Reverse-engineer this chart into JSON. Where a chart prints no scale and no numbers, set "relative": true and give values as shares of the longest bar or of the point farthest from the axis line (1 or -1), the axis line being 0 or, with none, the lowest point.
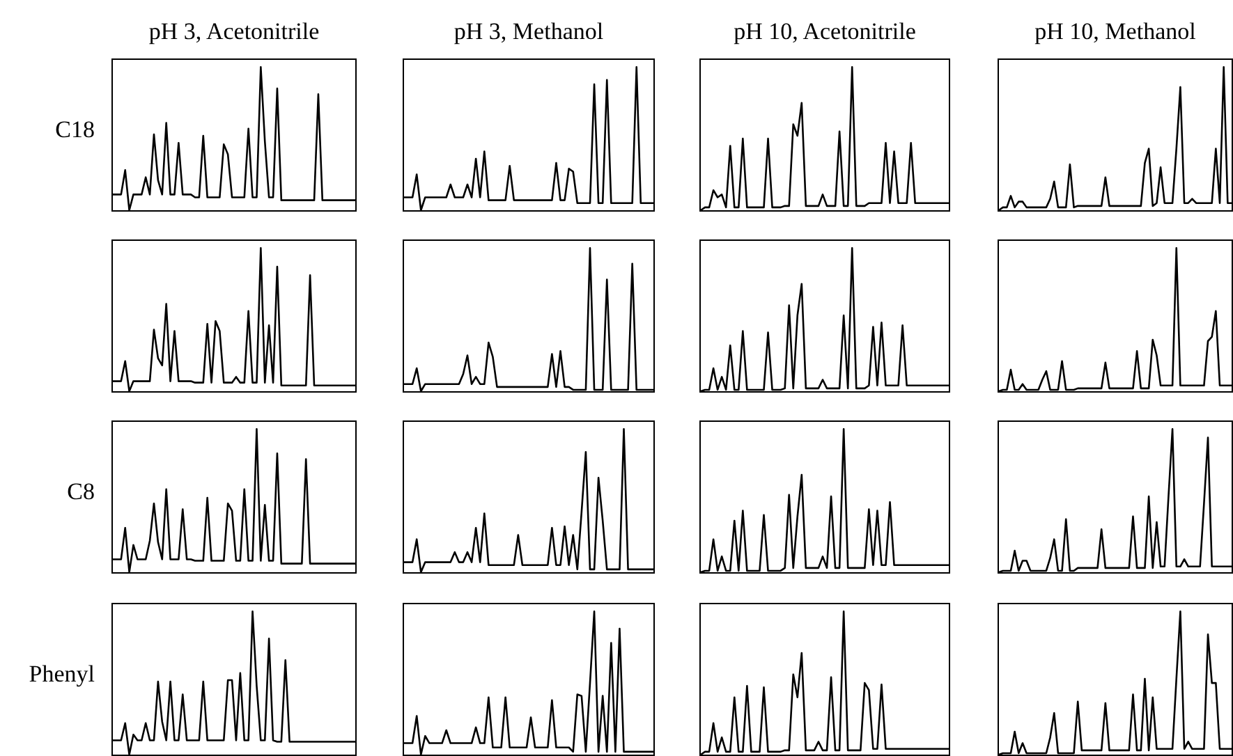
{
  "chart_data": [
    {
      "type": "line",
      "relative": true,
      "tick_labels": false,
      "color": "#000000",
      "title": "pH 3, Acetonitrile",
      "ylabel": "C18",
      "categories": [
        null,
        null,
        null,
        null,
        null,
        null,
        null,
        null,
        null,
        null,
        null,
        null,
        null,
        null,
        null,
        null,
        null,
        null,
        null,
        null,
        null,
        null,
        null,
        null,
        null,
        null,
        null,
        null,
        null,
        null,
        null,
        null,
        null,
        null,
        null,
        null,
        null,
        null,
        null,
        null,
        null,
        null,
        null,
        null,
        null,
        null,
        null,
        null,
        null,
        null,
        null,
        null,
        null,
        null,
        null,
        null,
        null,
        null,
        null,
        null
      ],
      "values": [
        0.11,
        0.11,
        0.11,
        0.28,
        0,
        0.11,
        0.11,
        0.11,
        0.23,
        0.11,
        0.53,
        0.21,
        0.11,
        0.61,
        0.11,
        0.11,
        0.47,
        0.11,
        0.11,
        0.11,
        0.09,
        0.09,
        0.52,
        0.09,
        0.09,
        0.09,
        0.09,
        0.46,
        0.39,
        0.09,
        0.09,
        0.09,
        0.09,
        0.57,
        0.09,
        0.09,
        1,
        0.48,
        0.09,
        0.09,
        0.85,
        0.07,
        0.07,
        0.07,
        0.07,
        0.07,
        0.07,
        0.07,
        0.07,
        0.07,
        0.81,
        0.07,
        0.07,
        0.07,
        0.07,
        0.07,
        0.07,
        0.07,
        0.07,
        0.07
      ]
    },
    {
      "type": "line",
      "relative": true,
      "tick_labels": false,
      "color": "#000000",
      "title": "pH 3, Methanol",
      "categories": [
        null,
        null,
        null,
        null,
        null,
        null,
        null,
        null,
        null,
        null,
        null,
        null,
        null,
        null,
        null,
        null,
        null,
        null,
        null,
        null,
        null,
        null,
        null,
        null,
        null,
        null,
        null,
        null,
        null,
        null,
        null,
        null,
        null,
        null,
        null,
        null,
        null,
        null,
        null,
        null,
        null,
        null,
        null,
        null,
        null,
        null,
        null,
        null,
        null,
        null,
        null,
        null,
        null,
        null,
        null,
        null,
        null,
        null,
        null,
        null
      ],
      "values": [
        0.09,
        0.09,
        0.09,
        0.25,
        0,
        0.09,
        0.09,
        0.09,
        0.09,
        0.09,
        0.09,
        0.18,
        0.09,
        0.09,
        0.09,
        0.18,
        0.09,
        0.36,
        0.09,
        0.41,
        0.07,
        0.07,
        0.07,
        0.07,
        0.07,
        0.31,
        0.07,
        0.07,
        0.07,
        0.07,
        0.07,
        0.07,
        0.07,
        0.07,
        0.07,
        0.07,
        0.33,
        0.07,
        0.07,
        0.29,
        0.27,
        0.05,
        0.05,
        0.05,
        0.05,
        0.88,
        0.05,
        0.05,
        0.91,
        0.05,
        0.05,
        0.05,
        0.05,
        0.05,
        0.05,
        1,
        0.05,
        0.05,
        0.05,
        0.05
      ]
    },
    {
      "type": "line",
      "relative": true,
      "tick_labels": false,
      "color": "#000000",
      "title": "pH 10, Acetonitrile",
      "categories": [
        null,
        null,
        null,
        null,
        null,
        null,
        null,
        null,
        null,
        null,
        null,
        null,
        null,
        null,
        null,
        null,
        null,
        null,
        null,
        null,
        null,
        null,
        null,
        null,
        null,
        null,
        null,
        null,
        null,
        null,
        null,
        null,
        null,
        null,
        null,
        null,
        null,
        null,
        null,
        null,
        null,
        null,
        null,
        null,
        null,
        null,
        null,
        null,
        null,
        null,
        null,
        null,
        null,
        null,
        null,
        null,
        null,
        null,
        null,
        null
      ],
      "values": [
        0,
        0.02,
        0.02,
        0.14,
        0.09,
        0.11,
        0.02,
        0.45,
        0.02,
        0.02,
        0.5,
        0.02,
        0.02,
        0.02,
        0.02,
        0.02,
        0.5,
        0.02,
        0.02,
        0.02,
        0.03,
        0.03,
        0.6,
        0.52,
        0.75,
        0.03,
        0.03,
        0.03,
        0.03,
        0.11,
        0.03,
        0.03,
        0.03,
        0.55,
        0.03,
        0.03,
        1,
        0.03,
        0.03,
        0.03,
        0.05,
        0.05,
        0.05,
        0.05,
        0.47,
        0.05,
        0.41,
        0.05,
        0.05,
        0.05,
        0.47,
        0.05,
        0.05,
        0.05,
        0.05,
        0.05,
        0.05,
        0.05,
        0.05,
        0.05
      ]
    },
    {
      "type": "line",
      "relative": true,
      "tick_labels": false,
      "color": "#000000",
      "title": "pH 10, Methanol",
      "categories": [
        null,
        null,
        null,
        null,
        null,
        null,
        null,
        null,
        null,
        null,
        null,
        null,
        null,
        null,
        null,
        null,
        null,
        null,
        null,
        null,
        null,
        null,
        null,
        null,
        null,
        null,
        null,
        null,
        null,
        null,
        null,
        null,
        null,
        null,
        null,
        null,
        null,
        null,
        null,
        null,
        null,
        null,
        null,
        null,
        null,
        null,
        null,
        null,
        null,
        null,
        null,
        null,
        null,
        null,
        null,
        null,
        null,
        null,
        null,
        null
      ],
      "values": [
        0,
        0.02,
        0.02,
        0.1,
        0.02,
        0.06,
        0.06,
        0.02,
        0.02,
        0.02,
        0.02,
        0.02,
        0.02,
        0.08,
        0.2,
        0.02,
        0.02,
        0.02,
        0.32,
        0.02,
        0.03,
        0.03,
        0.03,
        0.03,
        0.03,
        0.03,
        0.03,
        0.23,
        0.03,
        0.03,
        0.03,
        0.03,
        0.03,
        0.03,
        0.03,
        0.03,
        0.03,
        0.33,
        0.43,
        0.03,
        0.05,
        0.3,
        0.05,
        0.05,
        0.05,
        0.43,
        0.86,
        0.05,
        0.05,
        0.08,
        0.05,
        0.05,
        0.05,
        0.05,
        0.05,
        0.43,
        0.05,
        1,
        0.05,
        0.05
      ]
    },
    {
      "type": "line",
      "relative": true,
      "tick_labels": false,
      "color": "#000000",
      "categories": [
        null,
        null,
        null,
        null,
        null,
        null,
        null,
        null,
        null,
        null,
        null,
        null,
        null,
        null,
        null,
        null,
        null,
        null,
        null,
        null,
        null,
        null,
        null,
        null,
        null,
        null,
        null,
        null,
        null,
        null,
        null,
        null,
        null,
        null,
        null,
        null,
        null,
        null,
        null,
        null,
        null,
        null,
        null,
        null,
        null,
        null,
        null,
        null,
        null,
        null,
        null,
        null,
        null,
        null,
        null,
        null,
        null,
        null,
        null,
        null
      ],
      "values": [
        0.07,
        0.07,
        0.07,
        0.21,
        0,
        0.07,
        0.07,
        0.07,
        0.07,
        0.07,
        0.43,
        0.23,
        0.18,
        0.61,
        0.07,
        0.42,
        0.07,
        0.07,
        0.07,
        0.07,
        0.06,
        0.06,
        0.06,
        0.47,
        0.06,
        0.49,
        0.42,
        0.06,
        0.06,
        0.06,
        0.1,
        0.06,
        0.06,
        0.56,
        0.06,
        0.06,
        1,
        0.06,
        0.46,
        0.06,
        0.87,
        0.04,
        0.04,
        0.04,
        0.04,
        0.04,
        0.04,
        0.04,
        0.81,
        0.04,
        0.04,
        0.04,
        0.04,
        0.04,
        0.04,
        0.04,
        0.04,
        0.04,
        0.04,
        0.04
      ]
    },
    {
      "type": "line",
      "relative": true,
      "tick_labels": false,
      "color": "#000000",
      "categories": [
        null,
        null,
        null,
        null,
        null,
        null,
        null,
        null,
        null,
        null,
        null,
        null,
        null,
        null,
        null,
        null,
        null,
        null,
        null,
        null,
        null,
        null,
        null,
        null,
        null,
        null,
        null,
        null,
        null,
        null,
        null,
        null,
        null,
        null,
        null,
        null,
        null,
        null,
        null,
        null,
        null,
        null,
        null,
        null,
        null,
        null,
        null,
        null,
        null,
        null,
        null,
        null,
        null,
        null,
        null,
        null,
        null,
        null,
        null,
        null
      ],
      "values": [
        0.05,
        0.05,
        0.05,
        0.16,
        0,
        0.05,
        0.05,
        0.05,
        0.05,
        0.05,
        0.05,
        0.05,
        0.05,
        0.05,
        0.12,
        0.25,
        0.05,
        0.1,
        0.05,
        0.05,
        0.34,
        0.24,
        0.03,
        0.03,
        0.03,
        0.03,
        0.03,
        0.03,
        0.03,
        0.03,
        0.03,
        0.03,
        0.03,
        0.03,
        0.03,
        0.26,
        0.03,
        0.28,
        0.03,
        0.03,
        0.01,
        0.01,
        0.01,
        0.01,
        1,
        0.01,
        0.01,
        0.01,
        0.78,
        0.01,
        0.01,
        0.01,
        0.01,
        0.01,
        0.89,
        0.01,
        0.01,
        0.01,
        0.01,
        0.01
      ]
    },
    {
      "type": "line",
      "relative": true,
      "tick_labels": false,
      "color": "#000000",
      "categories": [
        null,
        null,
        null,
        null,
        null,
        null,
        null,
        null,
        null,
        null,
        null,
        null,
        null,
        null,
        null,
        null,
        null,
        null,
        null,
        null,
        null,
        null,
        null,
        null,
        null,
        null,
        null,
        null,
        null,
        null,
        null,
        null,
        null,
        null,
        null,
        null,
        null,
        null,
        null,
        null,
        null,
        null,
        null,
        null,
        null,
        null,
        null,
        null,
        null,
        null,
        null,
        null,
        null,
        null,
        null,
        null,
        null,
        null,
        null,
        null
      ],
      "values": [
        0,
        0.01,
        0.01,
        0.16,
        0.01,
        0.1,
        0.01,
        0.32,
        0.01,
        0.01,
        0.42,
        0.01,
        0.01,
        0.01,
        0.01,
        0.01,
        0.41,
        0.01,
        0.01,
        0.01,
        0.02,
        0.6,
        0.02,
        0.53,
        0.75,
        0.02,
        0.02,
        0.02,
        0.02,
        0.08,
        0.02,
        0.02,
        0.02,
        0.02,
        0.53,
        0.02,
        1,
        0.02,
        0.02,
        0.02,
        0.04,
        0.45,
        0.04,
        0.48,
        0.04,
        0.04,
        0.04,
        0.04,
        0.46,
        0.04,
        0.04,
        0.04,
        0.04,
        0.04,
        0.04,
        0.04,
        0.04,
        0.04,
        0.04,
        0.04
      ]
    },
    {
      "type": "line",
      "relative": true,
      "tick_labels": false,
      "color": "#000000",
      "categories": [
        null,
        null,
        null,
        null,
        null,
        null,
        null,
        null,
        null,
        null,
        null,
        null,
        null,
        null,
        null,
        null,
        null,
        null,
        null,
        null,
        null,
        null,
        null,
        null,
        null,
        null,
        null,
        null,
        null,
        null,
        null,
        null,
        null,
        null,
        null,
        null,
        null,
        null,
        null,
        null,
        null,
        null,
        null,
        null,
        null,
        null,
        null,
        null,
        null,
        null,
        null,
        null,
        null,
        null,
        null,
        null,
        null,
        null,
        null,
        null
      ],
      "values": [
        0,
        0.01,
        0.01,
        0.15,
        0.01,
        0.01,
        0.05,
        0.01,
        0.01,
        0.01,
        0.01,
        0.08,
        0.14,
        0.01,
        0.01,
        0.01,
        0.21,
        0.01,
        0.01,
        0.01,
        0.02,
        0.02,
        0.02,
        0.02,
        0.02,
        0.02,
        0.02,
        0.2,
        0.02,
        0.02,
        0.02,
        0.02,
        0.02,
        0.02,
        0.02,
        0.28,
        0.02,
        0.02,
        0.02,
        0.36,
        0.25,
        0.04,
        0.04,
        0.04,
        0.04,
        1,
        0.04,
        0.04,
        0.04,
        0.04,
        0.04,
        0.04,
        0.04,
        0.35,
        0.38,
        0.56,
        0.04,
        0.04,
        0.04,
        0.04
      ]
    },
    {
      "type": "line",
      "relative": true,
      "tick_labels": false,
      "color": "#000000",
      "ylabel": "C8",
      "categories": [
        null,
        null,
        null,
        null,
        null,
        null,
        null,
        null,
        null,
        null,
        null,
        null,
        null,
        null,
        null,
        null,
        null,
        null,
        null,
        null,
        null,
        null,
        null,
        null,
        null,
        null,
        null,
        null,
        null,
        null,
        null,
        null,
        null,
        null,
        null,
        null,
        null,
        null,
        null,
        null,
        null,
        null,
        null,
        null,
        null,
        null,
        null,
        null,
        null,
        null,
        null,
        null,
        null,
        null,
        null,
        null,
        null,
        null,
        null,
        null
      ],
      "values": [
        0.09,
        0.09,
        0.09,
        0.31,
        0,
        0.19,
        0.09,
        0.09,
        0.09,
        0.22,
        0.48,
        0.21,
        0.09,
        0.58,
        0.09,
        0.09,
        0.09,
        0.44,
        0.09,
        0.09,
        0.08,
        0.08,
        0.08,
        0.52,
        0.08,
        0.08,
        0.08,
        0.08,
        0.48,
        0.43,
        0.08,
        0.08,
        0.58,
        0.08,
        0.08,
        1,
        0.08,
        0.47,
        0.08,
        0.08,
        0.83,
        0.06,
        0.06,
        0.06,
        0.06,
        0.06,
        0.06,
        0.79,
        0.06,
        0.06,
        0.06,
        0.06,
        0.06,
        0.06,
        0.06,
        0.06,
        0.06,
        0.06,
        0.06,
        0.06
      ]
    },
    {
      "type": "line",
      "relative": true,
      "tick_labels": false,
      "color": "#000000",
      "categories": [
        null,
        null,
        null,
        null,
        null,
        null,
        null,
        null,
        null,
        null,
        null,
        null,
        null,
        null,
        null,
        null,
        null,
        null,
        null,
        null,
        null,
        null,
        null,
        null,
        null,
        null,
        null,
        null,
        null,
        null,
        null,
        null,
        null,
        null,
        null,
        null,
        null,
        null,
        null,
        null,
        null,
        null,
        null,
        null,
        null,
        null,
        null,
        null,
        null,
        null,
        null,
        null,
        null,
        null,
        null,
        null,
        null,
        null,
        null,
        null
      ],
      "values": [
        0.07,
        0.07,
        0.07,
        0.23,
        0,
        0.07,
        0.07,
        0.07,
        0.07,
        0.07,
        0.07,
        0.07,
        0.14,
        0.07,
        0.07,
        0.14,
        0.07,
        0.31,
        0.07,
        0.41,
        0.05,
        0.05,
        0.05,
        0.05,
        0.05,
        0.05,
        0.05,
        0.26,
        0.05,
        0.05,
        0.05,
        0.05,
        0.05,
        0.05,
        0.05,
        0.31,
        0.05,
        0.05,
        0.32,
        0.05,
        0.26,
        0.02,
        0.42,
        0.84,
        0.02,
        0.02,
        0.66,
        0.36,
        0.02,
        0.02,
        0.02,
        0.02,
        1,
        0.02,
        0.02,
        0.02,
        0.02,
        0.02,
        0.02,
        0.02
      ]
    },
    {
      "type": "line",
      "relative": true,
      "tick_labels": false,
      "color": "#000000",
      "categories": [
        null,
        null,
        null,
        null,
        null,
        null,
        null,
        null,
        null,
        null,
        null,
        null,
        null,
        null,
        null,
        null,
        null,
        null,
        null,
        null,
        null,
        null,
        null,
        null,
        null,
        null,
        null,
        null,
        null,
        null,
        null,
        null,
        null,
        null,
        null,
        null,
        null,
        null,
        null,
        null,
        null,
        null,
        null,
        null,
        null,
        null,
        null,
        null,
        null,
        null,
        null,
        null,
        null,
        null,
        null,
        null,
        null,
        null,
        null,
        null
      ],
      "values": [
        0,
        0.01,
        0.01,
        0.23,
        0.01,
        0.11,
        0.01,
        0.01,
        0.36,
        0.01,
        0.43,
        0.01,
        0.01,
        0.01,
        0.01,
        0.4,
        0.01,
        0.01,
        0.01,
        0.01,
        0.03,
        0.54,
        0.03,
        0.39,
        0.68,
        0.03,
        0.03,
        0.03,
        0.03,
        0.11,
        0.03,
        0.53,
        0.03,
        0.03,
        1,
        0.03,
        0.03,
        0.03,
        0.03,
        0.03,
        0.44,
        0.05,
        0.43,
        0.05,
        0.05,
        0.49,
        0.05,
        0.05,
        0.05,
        0.05,
        0.05,
        0.05,
        0.05,
        0.05,
        0.05,
        0.05,
        0.05,
        0.05,
        0.05,
        0.05
      ]
    },
    {
      "type": "line",
      "relative": true,
      "tick_labels": false,
      "color": "#000000",
      "categories": [
        null,
        null,
        null,
        null,
        null,
        null,
        null,
        null,
        null,
        null,
        null,
        null,
        null,
        null,
        null,
        null,
        null,
        null,
        null,
        null,
        null,
        null,
        null,
        null,
        null,
        null,
        null,
        null,
        null,
        null,
        null,
        null,
        null,
        null,
        null,
        null,
        null,
        null,
        null,
        null,
        null,
        null,
        null,
        null,
        null,
        null,
        null,
        null,
        null,
        null,
        null,
        null,
        null,
        null,
        null,
        null,
        null,
        null,
        null,
        null
      ],
      "values": [
        0,
        0.01,
        0.01,
        0.01,
        0.15,
        0.01,
        0.08,
        0.08,
        0.01,
        0.01,
        0.01,
        0.01,
        0.01,
        0.1,
        0.23,
        0.01,
        0.01,
        0.37,
        0.01,
        0.01,
        0.03,
        0.03,
        0.03,
        0.03,
        0.03,
        0.03,
        0.3,
        0.03,
        0.03,
        0.03,
        0.03,
        0.03,
        0.03,
        0.03,
        0.39,
        0.03,
        0.03,
        0.03,
        0.53,
        0.03,
        0.35,
        0.04,
        0.04,
        0.53,
        1,
        0.04,
        0.04,
        0.09,
        0.04,
        0.04,
        0.04,
        0.04,
        0.48,
        0.94,
        0.04,
        0.04,
        0.04,
        0.04,
        0.04,
        0.04
      ]
    },
    {
      "type": "line",
      "relative": true,
      "tick_labels": false,
      "color": "#000000",
      "ylabel": "Phenyl",
      "categories": [
        null,
        null,
        null,
        null,
        null,
        null,
        null,
        null,
        null,
        null,
        null,
        null,
        null,
        null,
        null,
        null,
        null,
        null,
        null,
        null,
        null,
        null,
        null,
        null,
        null,
        null,
        null,
        null,
        null,
        null,
        null,
        null,
        null,
        null,
        null,
        null,
        null,
        null,
        null,
        null,
        null,
        null,
        null,
        null,
        null,
        null,
        null,
        null,
        null,
        null,
        null,
        null,
        null,
        null,
        null,
        null,
        null,
        null,
        null,
        null
      ],
      "values": [
        0.1,
        0.1,
        0.1,
        0.22,
        0,
        0.14,
        0.1,
        0.1,
        0.22,
        0.1,
        0.1,
        0.51,
        0.23,
        0.1,
        0.51,
        0.1,
        0.1,
        0.42,
        0.1,
        0.1,
        0.1,
        0.1,
        0.51,
        0.1,
        0.1,
        0.1,
        0.1,
        0.1,
        0.52,
        0.52,
        0.1,
        0.57,
        0.1,
        0.1,
        1,
        0.48,
        0.1,
        0.1,
        0.81,
        0.1,
        0.09,
        0.09,
        0.66,
        0.09,
        0.09,
        0.09,
        0.09,
        0.09,
        0.09,
        0.09,
        0.09,
        0.09,
        0.09,
        0.09,
        0.09,
        0.09,
        0.09,
        0.09,
        0.09,
        0.09
      ]
    },
    {
      "type": "line",
      "relative": true,
      "tick_labels": false,
      "color": "#000000",
      "categories": [
        null,
        null,
        null,
        null,
        null,
        null,
        null,
        null,
        null,
        null,
        null,
        null,
        null,
        null,
        null,
        null,
        null,
        null,
        null,
        null,
        null,
        null,
        null,
        null,
        null,
        null,
        null,
        null,
        null,
        null,
        null,
        null,
        null,
        null,
        null,
        null,
        null,
        null,
        null,
        null,
        null,
        null,
        null,
        null,
        null,
        null,
        null,
        null,
        null,
        null,
        null,
        null,
        null,
        null,
        null,
        null,
        null,
        null,
        null,
        null
      ],
      "values": [
        0.08,
        0.08,
        0.08,
        0.27,
        0,
        0.13,
        0.08,
        0.08,
        0.08,
        0.08,
        0.17,
        0.08,
        0.08,
        0.08,
        0.08,
        0.08,
        0.08,
        0.19,
        0.08,
        0.08,
        0.4,
        0.05,
        0.05,
        0.05,
        0.4,
        0.05,
        0.05,
        0.05,
        0.05,
        0.05,
        0.26,
        0.05,
        0.05,
        0.05,
        0.05,
        0.38,
        0.05,
        0.05,
        0.05,
        0.05,
        0.02,
        0.42,
        0.41,
        0.02,
        0.5,
        1,
        0.02,
        0.41,
        0.02,
        0.78,
        0.02,
        0.88,
        0.02,
        0.02,
        0.02,
        0.02,
        0.02,
        0.02,
        0.02,
        0.02
      ]
    },
    {
      "type": "line",
      "relative": true,
      "tick_labels": false,
      "color": "#000000",
      "categories": [
        null,
        null,
        null,
        null,
        null,
        null,
        null,
        null,
        null,
        null,
        null,
        null,
        null,
        null,
        null,
        null,
        null,
        null,
        null,
        null,
        null,
        null,
        null,
        null,
        null,
        null,
        null,
        null,
        null,
        null,
        null,
        null,
        null,
        null,
        null,
        null,
        null,
        null,
        null,
        null,
        null,
        null,
        null,
        null,
        null,
        null,
        null,
        null,
        null,
        null,
        null,
        null,
        null,
        null,
        null,
        null,
        null,
        null,
        null,
        null
      ],
      "values": [
        0,
        0.02,
        0.02,
        0.22,
        0.02,
        0.12,
        0.02,
        0.02,
        0.4,
        0.02,
        0.02,
        0.48,
        0.02,
        0.02,
        0.02,
        0.47,
        0.02,
        0.02,
        0.02,
        0.02,
        0.03,
        0.03,
        0.56,
        0.4,
        0.71,
        0.03,
        0.03,
        0.03,
        0.09,
        0.03,
        0.03,
        0.54,
        0.03,
        0.03,
        1,
        0.03,
        0.03,
        0.03,
        0.03,
        0.5,
        0.45,
        0.04,
        0.04,
        0.49,
        0.04,
        0.04,
        0.04,
        0.04,
        0.04,
        0.04,
        0.04,
        0.04,
        0.04,
        0.04,
        0.04,
        0.04,
        0.04,
        0.04,
        0.04,
        0.04
      ]
    },
    {
      "type": "line",
      "relative": true,
      "tick_labels": false,
      "color": "#000000",
      "categories": [
        null,
        null,
        null,
        null,
        null,
        null,
        null,
        null,
        null,
        null,
        null,
        null,
        null,
        null,
        null,
        null,
        null,
        null,
        null,
        null,
        null,
        null,
        null,
        null,
        null,
        null,
        null,
        null,
        null,
        null,
        null,
        null,
        null,
        null,
        null,
        null,
        null,
        null,
        null,
        null,
        null,
        null,
        null,
        null,
        null,
        null,
        null,
        null,
        null,
        null,
        null,
        null,
        null,
        null,
        null,
        null,
        null,
        null,
        null,
        null
      ],
      "values": [
        0,
        0.01,
        0.01,
        0.01,
        0.16,
        0.01,
        0.08,
        0.01,
        0.01,
        0.01,
        0.01,
        0.01,
        0.01,
        0.12,
        0.29,
        0.01,
        0.01,
        0.01,
        0.01,
        0.01,
        0.37,
        0.03,
        0.03,
        0.03,
        0.03,
        0.03,
        0.03,
        0.36,
        0.03,
        0.03,
        0.03,
        0.03,
        0.03,
        0.03,
        0.42,
        0.03,
        0.03,
        0.53,
        0.03,
        0.4,
        0.04,
        0.04,
        0.04,
        0.04,
        0.04,
        0.53,
        1,
        0.04,
        0.09,
        0.04,
        0.04,
        0.04,
        0.04,
        0.84,
        0.5,
        0.5,
        0.04,
        0.04,
        0.04,
        0.04
      ]
    }
  ]
}
